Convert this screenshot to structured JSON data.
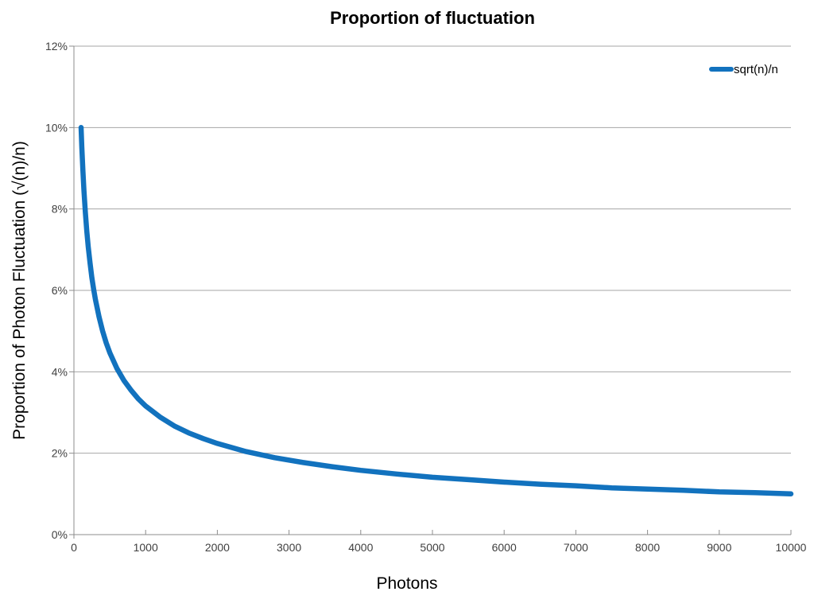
{
  "chart_data": {
    "type": "line",
    "title": "Proportion of fluctuation",
    "xlabel": "Photons",
    "ylabel": "Proportion of Photon Fluctuation (√(n)/n)",
    "xlim": [
      0,
      10000
    ],
    "ylim_percent": [
      0,
      12
    ],
    "x_tick_values": [
      0,
      1000,
      2000,
      3000,
      4000,
      5000,
      6000,
      7000,
      8000,
      9000,
      10000
    ],
    "x_tick_labels": [
      "0",
      "1000",
      "2000",
      "3000",
      "4000",
      "5000",
      "6000",
      "7000",
      "8000",
      "9000",
      "10000"
    ],
    "y_tick_values": [
      0,
      2,
      4,
      6,
      8,
      10,
      12
    ],
    "y_tick_labels": [
      "0%",
      "2%",
      "4%",
      "6%",
      "8%",
      "10%",
      "12%"
    ],
    "grid": "horizontal",
    "legend_position": "top-right",
    "series": [
      {
        "name": "sqrt(n)/n",
        "color": "#1272be",
        "x": [
          100,
          110,
          125,
          140,
          160,
          180,
          200,
          225,
          250,
          275,
          300,
          350,
          400,
          450,
          500,
          600,
          700,
          800,
          900,
          1000,
          1200,
          1400,
          1600,
          1800,
          2000,
          2400,
          2800,
          3200,
          3600,
          4000,
          4500,
          5000,
          5500,
          6000,
          6500,
          7000,
          7500,
          8000,
          8500,
          9000,
          9500,
          10000
        ],
        "y_percent": [
          10.0,
          9.53,
          8.94,
          8.45,
          7.91,
          7.45,
          7.07,
          6.67,
          6.32,
          6.03,
          5.77,
          5.35,
          5.0,
          4.71,
          4.47,
          4.08,
          3.78,
          3.54,
          3.33,
          3.16,
          2.89,
          2.67,
          2.5,
          2.36,
          2.24,
          2.04,
          1.89,
          1.77,
          1.67,
          1.58,
          1.49,
          1.41,
          1.35,
          1.29,
          1.24,
          1.2,
          1.15,
          1.12,
          1.09,
          1.05,
          1.03,
          1.0
        ]
      }
    ]
  },
  "colors": {
    "grid_line": "#a6a6a6",
    "axis_line": "#8c8c8c",
    "tick_label": "#404040",
    "title_text": "#000000"
  }
}
